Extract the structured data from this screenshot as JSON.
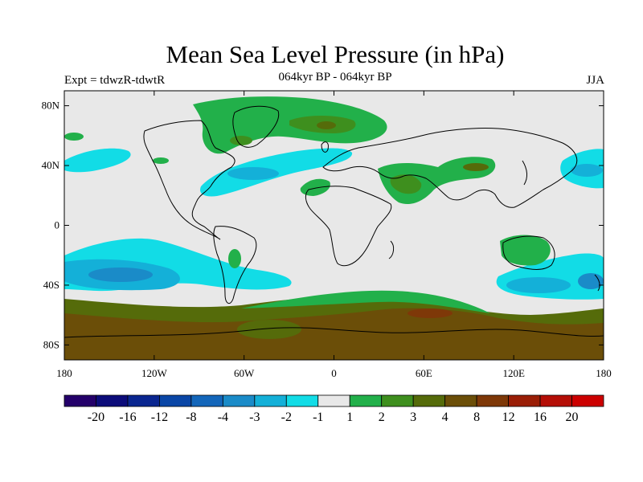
{
  "header": {
    "title": "Mean Sea Level Pressure (in hPa)",
    "experiment": "Expt = tdwzR-tdwtR",
    "period": "064kyr BP - 064kyr BP",
    "season": "JJA"
  },
  "map": {
    "lat_labels": [
      "80N",
      "40N",
      "0",
      "40S",
      "80S"
    ],
    "lat_values": [
      80,
      40,
      0,
      -40,
      -80
    ],
    "lon_labels": [
      "180",
      "120W",
      "60W",
      "0",
      "60E",
      "120E",
      "180"
    ],
    "lon_values": [
      -180,
      -120,
      -60,
      0,
      60,
      120,
      180
    ],
    "lat_range": [
      -90,
      90
    ],
    "lon_range": [
      -180,
      180
    ],
    "background_color": "#e8e8e8"
  },
  "colorbar": {
    "labels": [
      "-20",
      "-16",
      "-12",
      "-8",
      "-4",
      "-3",
      "-2",
      "-1",
      "1",
      "2",
      "3",
      "4",
      "8",
      "12",
      "16",
      "20"
    ],
    "colors": [
      "#24006a",
      "#0c0c7a",
      "#0a2690",
      "#0a46a6",
      "#1366ba",
      "#1a8bc8",
      "#14b0d8",
      "#12dce6",
      "#e8e8e8",
      "#22b04a",
      "#3e8f1e",
      "#556b0a",
      "#6b4e08",
      "#7e3808",
      "#9a1e06",
      "#b40e06",
      "#cc0000"
    ]
  }
}
